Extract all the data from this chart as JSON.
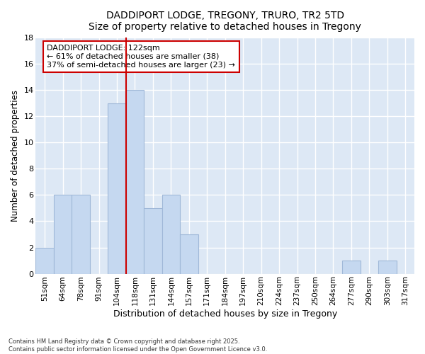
{
  "title": "DADDIPORT LODGE, TREGONY, TRURO, TR2 5TD",
  "subtitle": "Size of property relative to detached houses in Tregony",
  "xlabel": "Distribution of detached houses by size in Tregony",
  "ylabel": "Number of detached properties",
  "categories": [
    "51sqm",
    "64sqm",
    "78sqm",
    "91sqm",
    "104sqm",
    "118sqm",
    "131sqm",
    "144sqm",
    "157sqm",
    "171sqm",
    "184sqm",
    "197sqm",
    "210sqm",
    "224sqm",
    "237sqm",
    "250sqm",
    "264sqm",
    "277sqm",
    "290sqm",
    "303sqm",
    "317sqm"
  ],
  "values": [
    2,
    6,
    6,
    0,
    13,
    14,
    5,
    6,
    3,
    0,
    0,
    0,
    0,
    0,
    0,
    0,
    0,
    1,
    0,
    1,
    0
  ],
  "bar_color": "#c5d8f0",
  "bar_edgecolor": "#a0b8d8",
  "vline_index": 5,
  "annotation_text_line1": "DADDIPORT LODGE: 122sqm",
  "annotation_text_line2": "← 61% of detached houses are smaller (38)",
  "annotation_text_line3": "37% of semi-detached houses are larger (23) →",
  "annotation_box_facecolor": "#ffffff",
  "annotation_border_color": "#cc0000",
  "ylim": [
    0,
    18
  ],
  "yticks": [
    0,
    2,
    4,
    6,
    8,
    10,
    12,
    14,
    16,
    18
  ],
  "vline_color": "#cc0000",
  "background_color": "#dde8f5",
  "grid_color": "#ffffff",
  "footer_line1": "Contains HM Land Registry data © Crown copyright and database right 2025.",
  "footer_line2": "Contains public sector information licensed under the Open Government Licence v3.0."
}
